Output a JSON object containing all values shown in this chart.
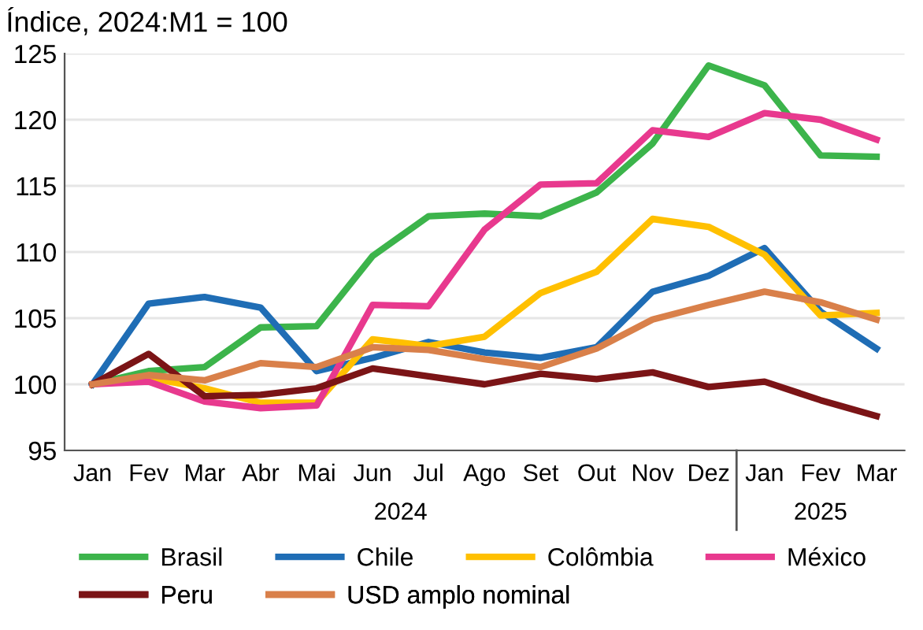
{
  "chart_data": {
    "type": "line",
    "title": "Índice, 2024:M1 = 100",
    "categories": [
      "Jan",
      "Fev",
      "Mar",
      "Abr",
      "Mai",
      "Jun",
      "Jul",
      "Ago",
      "Set",
      "Out",
      "Nov",
      "Dez",
      "Jan",
      "Fev",
      "Mar"
    ],
    "annotations": [
      "2024",
      "2025"
    ],
    "series": [
      {
        "name": "Brasil",
        "color": "#3cb44b",
        "values": [
          100,
          101,
          101.3,
          104.3,
          104.4,
          109.7,
          112.7,
          112.9,
          112.7,
          114.5,
          118.2,
          124.1,
          122.6,
          117.3,
          117.2
        ]
      },
      {
        "name": "Chile",
        "color": "#1f6db5",
        "values": [
          100,
          106.1,
          106.6,
          105.8,
          101.0,
          102.0,
          103.2,
          102.4,
          102.0,
          102.8,
          107.0,
          108.2,
          110.3,
          105.5,
          102.7
        ]
      },
      {
        "name": "Colômbia",
        "color": "#ffc000",
        "values": [
          100,
          100.5,
          99.7,
          98.6,
          98.6,
          103.4,
          102.9,
          103.6,
          106.9,
          108.5,
          112.5,
          111.9,
          109.8,
          105.2,
          105.4
        ]
      },
      {
        "name": "México",
        "color": "#e8398e",
        "values": [
          100,
          100.2,
          98.7,
          98.2,
          98.4,
          106.0,
          105.9,
          111.7,
          115.1,
          115.2,
          119.2,
          118.7,
          120.5,
          120.0,
          118.5
        ]
      },
      {
        "name": "Peru",
        "color": "#7b1416",
        "values": [
          100,
          102.3,
          99.1,
          99.2,
          99.7,
          101.2,
          100.6,
          100.0,
          100.8,
          100.4,
          100.9,
          99.8,
          100.2,
          98.8,
          97.6
        ]
      },
      {
        "name": "USD amplo nominal",
        "color": "#d9804a",
        "values": [
          100,
          100.7,
          100.3,
          101.6,
          101.3,
          102.8,
          102.6,
          101.9,
          101.3,
          102.7,
          104.9,
          106.0,
          107.0,
          106.2,
          104.9
        ]
      }
    ],
    "ylim": [
      95,
      125
    ],
    "yticks": [
      95,
      100,
      105,
      110,
      115,
      120,
      125
    ],
    "grid": "y",
    "legend": "bottom",
    "line_style": "solid",
    "marker": "none"
  }
}
